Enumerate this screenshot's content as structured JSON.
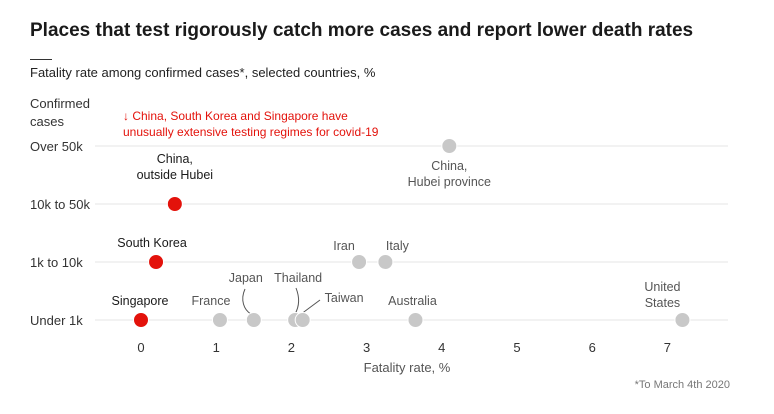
{
  "title": "Places that test rigorously catch more cases and report lower death rates",
  "subtitle": "Fatality rate among confirmed cases*, selected countries, %",
  "footnote": "*To March 4th 2020",
  "colors": {
    "highlight": "#e3120b",
    "other": "#c8c8c8",
    "grid": "#e6e6e6",
    "text": "#333333"
  },
  "chart_data": {
    "type": "scatter",
    "title": "Fatality rate among confirmed cases*, selected countries, %",
    "xlabel": "Fatality rate, %",
    "ylabel": "Confirmed cases",
    "xlim": [
      -0.4,
      7.6
    ],
    "xticks": [
      0,
      1,
      2,
      3,
      4,
      5,
      6,
      7
    ],
    "categories": [
      "Under 1k",
      "1k to 10k",
      "10k to 50k",
      "Over 50k"
    ],
    "points": [
      {
        "name": "China, Hubei province",
        "label_lines": [
          "China,",
          "Hubei province"
        ],
        "x": 4.1,
        "category": "Over 50k",
        "highlight": false
      },
      {
        "name": "China, outside Hubei",
        "label_lines": [
          "China,",
          "outside Hubei"
        ],
        "x": 0.45,
        "category": "10k to 50k",
        "highlight": true
      },
      {
        "name": "South Korea",
        "label_lines": [
          "South Korea"
        ],
        "x": 0.2,
        "category": "1k to 10k",
        "highlight": true
      },
      {
        "name": "Iran",
        "label_lines": [
          "Iran"
        ],
        "x": 2.9,
        "category": "1k to 10k",
        "highlight": false
      },
      {
        "name": "Italy",
        "label_lines": [
          "Italy"
        ],
        "x": 3.25,
        "category": "1k to 10k",
        "highlight": false
      },
      {
        "name": "Singapore",
        "label_lines": [
          "Singapore"
        ],
        "x": 0.0,
        "category": "Under 1k",
        "highlight": true
      },
      {
        "name": "France",
        "label_lines": [
          "France"
        ],
        "x": 1.05,
        "category": "Under 1k",
        "highlight": false
      },
      {
        "name": "Japan",
        "label_lines": [
          "Japan"
        ],
        "x": 1.5,
        "category": "Under 1k",
        "highlight": false
      },
      {
        "name": "Thailand",
        "label_lines": [
          "Thailand"
        ],
        "x": 2.05,
        "category": "Under 1k",
        "highlight": false
      },
      {
        "name": "Taiwan",
        "label_lines": [
          "Taiwan"
        ],
        "x": 2.15,
        "category": "Under 1k",
        "highlight": false
      },
      {
        "name": "Australia",
        "label_lines": [
          "Australia"
        ],
        "x": 3.65,
        "category": "Under 1k",
        "highlight": false
      },
      {
        "name": "United States",
        "label_lines": [
          "United",
          "States"
        ],
        "x": 7.2,
        "category": "Under 1k",
        "highlight": false
      }
    ],
    "annotation": {
      "arrow": "↓",
      "lines": [
        "China, South Korea and Singapore have",
        "unusually extensive testing regimes for covid-19"
      ]
    }
  }
}
